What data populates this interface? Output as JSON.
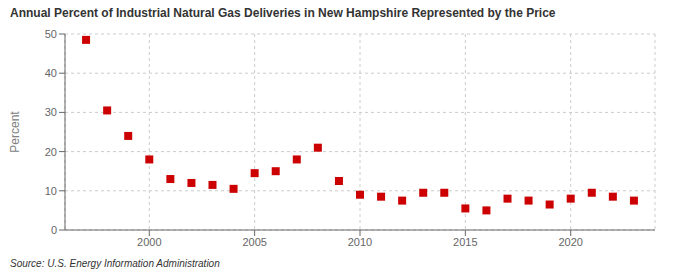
{
  "chart_data": {
    "type": "scatter",
    "title": "Annual Percent of Industrial Natural Gas Deliveries in New Hampshire Represented by the Price",
    "y_label": "Percent",
    "annotations": [
      "Source: U.S. Energy Information Administration"
    ],
    "x": [
      1997,
      1998,
      1999,
      2000,
      2001,
      2002,
      2003,
      2004,
      2005,
      2006,
      2007,
      2008,
      2009,
      2010,
      2011,
      2012,
      2013,
      2014,
      2015,
      2016,
      2017,
      2018,
      2019,
      2020,
      2021,
      2022,
      2023
    ],
    "values": [
      48.5,
      30.5,
      24.0,
      18.0,
      13.0,
      12.0,
      11.5,
      10.5,
      14.5,
      15.0,
      18.0,
      21.0,
      12.5,
      9.0,
      8.5,
      7.5,
      9.5,
      9.5,
      5.5,
      5.0,
      8.0,
      7.5,
      6.5,
      8.0,
      9.5,
      8.5,
      7.5
    ],
    "color": "#cc0000",
    "marker": "square",
    "xlim": [
      1996,
      2024
    ],
    "ylim": [
      0,
      50
    ],
    "xticks": [
      2000,
      2005,
      2010,
      2015,
      2020
    ],
    "yticks": [
      0,
      10,
      20,
      30,
      40,
      50
    ],
    "grid": true
  }
}
